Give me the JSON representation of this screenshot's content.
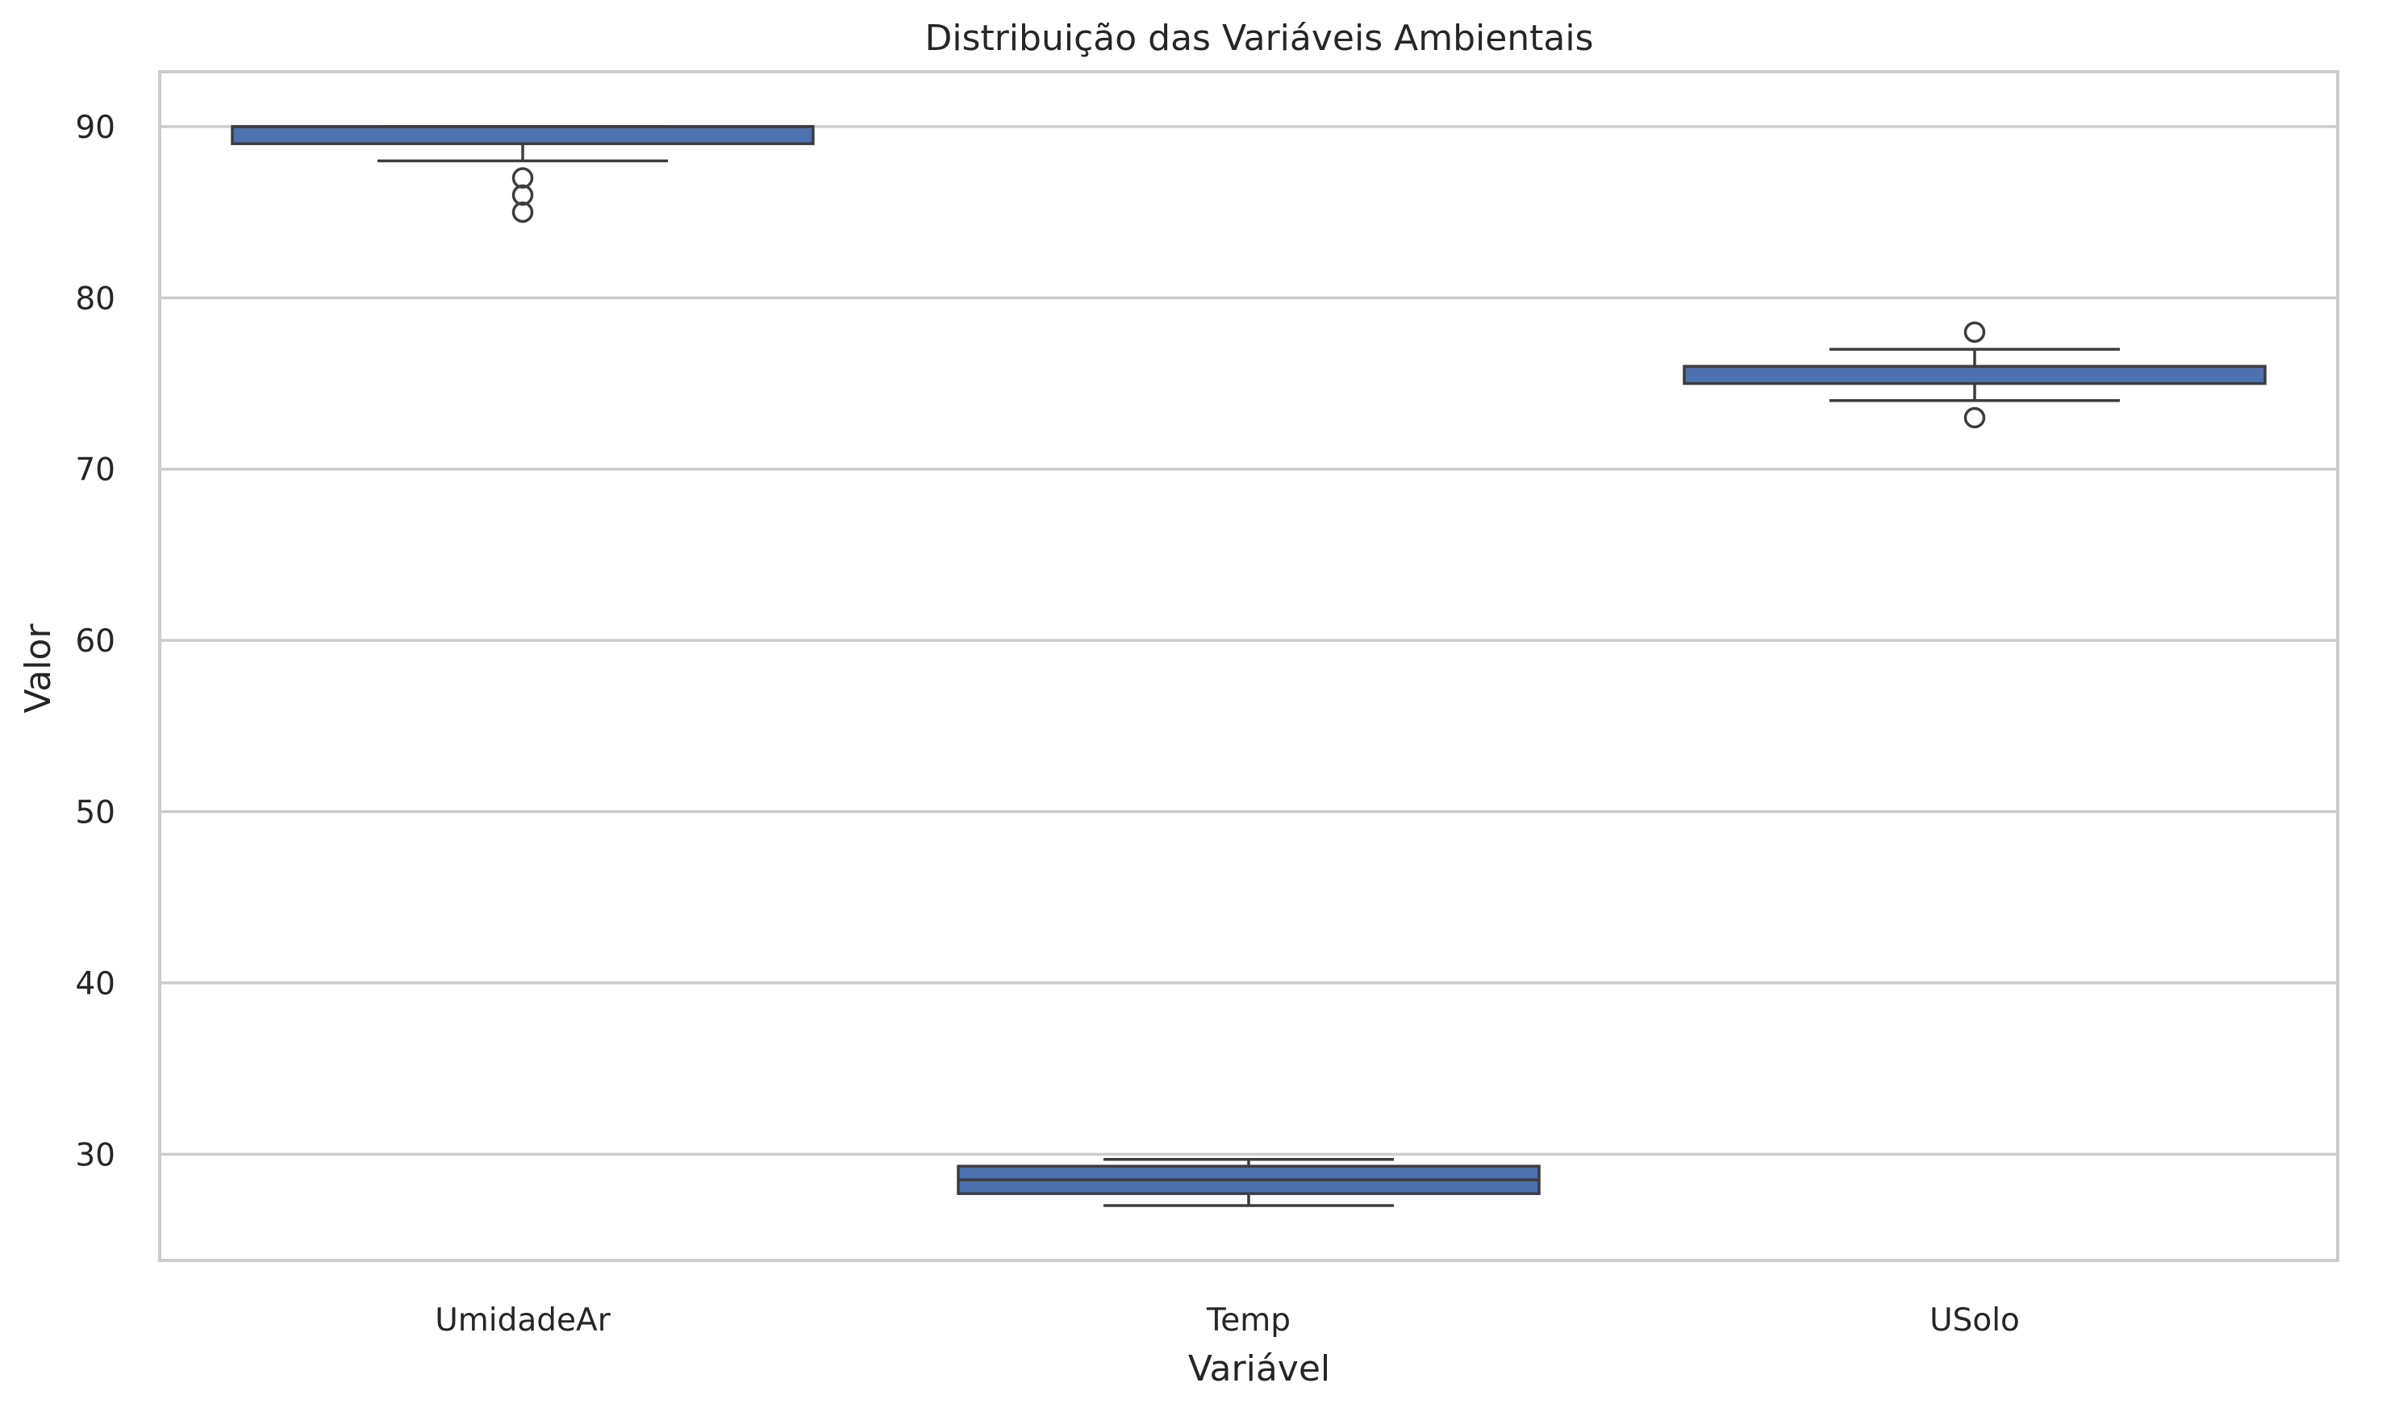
{
  "chart_data": {
    "type": "box",
    "title": "Distribuição das Variáveis Ambientais",
    "xlabel": "Variável",
    "ylabel": "Valor",
    "ylim": [
      23.8,
      93.2
    ],
    "yticks": [
      30,
      40,
      50,
      60,
      70,
      80,
      90
    ],
    "grid": true,
    "categories": [
      "UmidadeAr",
      "Temp",
      "USolo"
    ],
    "series": [
      {
        "boxes": [
          {
            "category": "UmidadeAr",
            "whisker_low": 88,
            "q1": 89,
            "median": 90,
            "q3": 90,
            "whisker_high": 90,
            "outliers": [
              87,
              86,
              85
            ]
          },
          {
            "category": "Temp",
            "whisker_low": 27,
            "q1": 27.7,
            "median": 28.5,
            "q3": 29.3,
            "whisker_high": 29.7,
            "outliers": []
          },
          {
            "category": "USolo",
            "whisker_low": 74,
            "q1": 75,
            "median": 76,
            "q3": 76,
            "whisker_high": 77,
            "outliers": [
              78,
              73
            ]
          }
        ]
      }
    ],
    "colors": {
      "box_fill": "#4c72b0",
      "box_edge": "#3d3d3d",
      "grid": "#cccccc",
      "spine": "#cccccc",
      "text": "#262626"
    }
  }
}
